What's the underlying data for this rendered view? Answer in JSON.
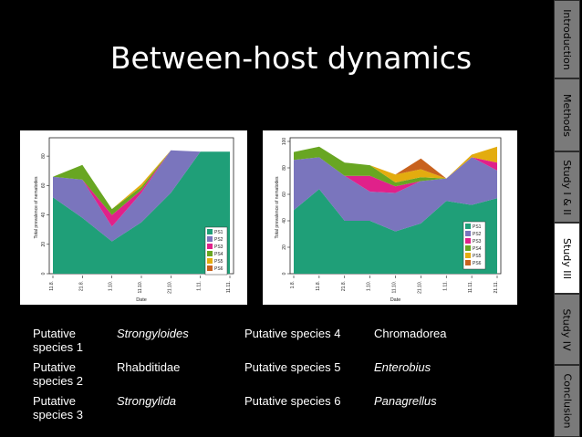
{
  "slide": {
    "title": "Between-host dynamics"
  },
  "nav": {
    "tabs": [
      {
        "label": "Introduction",
        "active": false
      },
      {
        "label": "Methods",
        "active": false
      },
      {
        "label": "Study I & II",
        "active": false
      },
      {
        "label": "Study III",
        "active": true
      },
      {
        "label": "Study IV",
        "active": false
      },
      {
        "label": "Conclusion",
        "active": false
      }
    ]
  },
  "species_table": [
    [
      "Putative species 1",
      "Strongyloides",
      "Putative species 4",
      "Chromadorea"
    ],
    [
      "Putative species 2",
      "Rhabditidae",
      "Putative species 5",
      "Enterobius"
    ],
    [
      "Putative species 3",
      "Strongylida",
      "Putative species 6",
      "Panagrellus"
    ]
  ],
  "colors": {
    "PS1": "#1f9f78",
    "PS2": "#7a75bd",
    "PS3": "#e0218a",
    "PS4": "#68a622",
    "PS5": "#e3ac0f",
    "PS6": "#c8621e",
    "active_tab": "#ffffff",
    "inactive_tab": "#7a7a7a"
  },
  "chart_data": [
    {
      "type": "area",
      "stacked": true,
      "x": [
        "11.8.",
        "21.8.",
        "1.10.",
        "11.10.",
        "21.10.",
        "1.11.",
        "11.11."
      ],
      "xlabel": "Date",
      "ylabel": "Total prevalence of nematodes",
      "ylim": [
        0,
        90
      ],
      "yticks": [
        0,
        20,
        40,
        60,
        80
      ],
      "legend": [
        "PS1",
        "PS2",
        "PS3",
        "PS4",
        "PS5",
        "PS6"
      ],
      "legend_position": "bottom-right",
      "series": [
        {
          "name": "PS1",
          "values": [
            52,
            38,
            22,
            35,
            55,
            83,
            83
          ]
        },
        {
          "name": "PS2",
          "values": [
            14,
            26,
            10,
            20,
            29,
            0,
            0
          ]
        },
        {
          "name": "PS3",
          "values": [
            0,
            0,
            8,
            2,
            0,
            0,
            0
          ]
        },
        {
          "name": "PS4",
          "values": [
            0,
            10,
            4,
            2,
            0,
            0,
            0
          ]
        },
        {
          "name": "PS5",
          "values": [
            0,
            0,
            0,
            2,
            0,
            0,
            0
          ]
        },
        {
          "name": "PS6",
          "values": [
            0,
            0,
            0,
            0,
            0,
            0,
            0
          ]
        }
      ]
    },
    {
      "type": "area",
      "stacked": true,
      "x": [
        "1.8.",
        "11.8.",
        "21.8.",
        "1.10.",
        "11.10.",
        "21.10.",
        "1.11.",
        "11.11.",
        "21.11."
      ],
      "xlabel": "Date",
      "ylabel": "Total prevalence of nematodes",
      "ylim": [
        0,
        100
      ],
      "yticks": [
        0,
        20,
        40,
        60,
        80,
        100
      ],
      "legend": [
        "PS1",
        "PS2",
        "PS3",
        "PS4",
        "PS5",
        "PS6"
      ],
      "legend_position": "bottom-right",
      "series": [
        {
          "name": "PS1",
          "values": [
            48,
            64,
            40,
            40,
            32,
            38,
            55,
            52,
            57
          ]
        },
        {
          "name": "PS2",
          "values": [
            38,
            24,
            34,
            22,
            29,
            32,
            17,
            36,
            21
          ]
        },
        {
          "name": "PS3",
          "values": [
            0,
            0,
            0,
            12,
            5,
            0,
            0,
            0,
            6
          ]
        },
        {
          "name": "PS4",
          "values": [
            6,
            8,
            10,
            8,
            3,
            3,
            0,
            0,
            0
          ]
        },
        {
          "name": "PS5",
          "values": [
            0,
            0,
            0,
            0,
            6,
            6,
            0,
            2,
            12
          ]
        },
        {
          "name": "PS6",
          "values": [
            0,
            0,
            0,
            0,
            0,
            8,
            0,
            0,
            0
          ]
        }
      ]
    }
  ]
}
